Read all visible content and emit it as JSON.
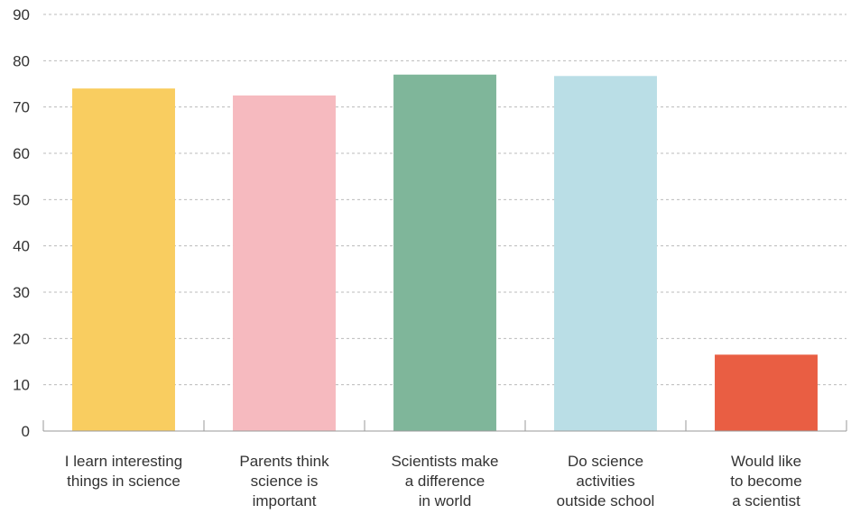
{
  "chart_data": {
    "type": "bar",
    "title": "",
    "xlabel": "",
    "ylabel": "",
    "ylim": [
      0,
      90
    ],
    "yticks": [
      0,
      10,
      20,
      30,
      40,
      50,
      60,
      70,
      80,
      90
    ],
    "grid": true,
    "categories": [
      [
        "I learn interesting",
        "things in science"
      ],
      [
        "Parents think",
        "science is",
        "important"
      ],
      [
        "Scientists make",
        "a difference",
        "in world"
      ],
      [
        "Do science",
        "activities",
        "outside school"
      ],
      [
        "Would like",
        "to become",
        "a scientist"
      ]
    ],
    "values": [
      74,
      72.5,
      77,
      76.7,
      16.5
    ],
    "colors": [
      "#f9cd60",
      "#f6babf",
      "#7fb69a",
      "#badee6",
      "#e95e43"
    ]
  }
}
